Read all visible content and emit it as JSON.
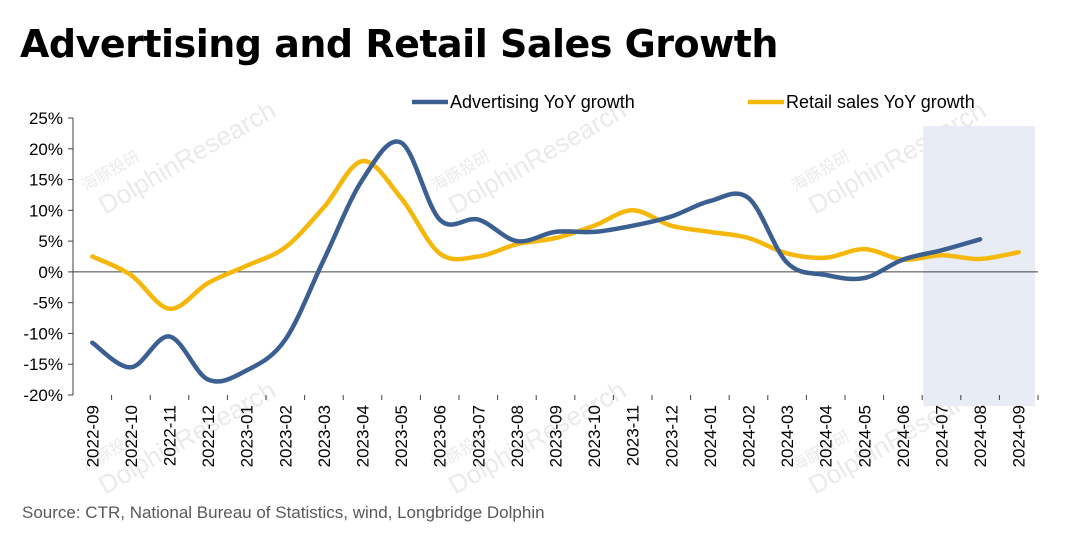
{
  "title": "Advertising and Retail Sales Growth",
  "source": "Source: CTR, National Bureau of Statistics, wind, Longbridge Dolphin",
  "watermark": {
    "brand": "DolphinResearch",
    "cn": "海豚投研"
  },
  "colors": {
    "advertising": "#3C5F92",
    "retail": "#F5B80A",
    "shade": "#E8ECF5",
    "axis": "#404040"
  },
  "chart_data": {
    "type": "line",
    "categories": [
      "2022-09",
      "2022-10",
      "2022-11",
      "2022-12",
      "2023-01",
      "2023-02",
      "2023-03",
      "2023-04",
      "2023-05",
      "2023-06",
      "2023-07",
      "2023-08",
      "2023-09",
      "2023-10",
      "2023-11",
      "2023-12",
      "2024-01",
      "2024-02",
      "2024-03",
      "2024-04",
      "2024-05",
      "2024-06",
      "2024-07",
      "2024-08",
      "2024-09"
    ],
    "series": [
      {
        "name": "Advertising YoY growth",
        "color": "#3C5F92",
        "values": [
          -11.5,
          -15.5,
          -10.5,
          -17.5,
          -16,
          -11,
          2,
          15,
          21,
          8.5,
          8.5,
          5,
          6.5,
          6.5,
          7.5,
          9,
          11.5,
          12,
          1.5,
          -0.5,
          -1,
          2,
          3.5,
          5.3,
          null
        ]
      },
      {
        "name": "Retail sales YoY growth",
        "color": "#F5B80A",
        "values": [
          2.5,
          -0.5,
          -6,
          -1.8,
          1,
          4,
          10.5,
          18,
          12,
          3,
          2.5,
          4.5,
          5.5,
          7.5,
          10,
          7.5,
          6.5,
          5.5,
          3,
          2.3,
          3.7,
          2,
          2.7,
          2.1,
          3.2
        ]
      }
    ],
    "ylim": [
      -20,
      25
    ],
    "yticks": [
      "25%",
      "20%",
      "15%",
      "10%",
      "5%",
      "0%",
      "-5%",
      "-10%",
      "-15%",
      "-20%"
    ],
    "shaded_range": [
      "2024-07",
      "2024-09"
    ],
    "legend": "top-right",
    "xlabel": "",
    "ylabel": ""
  }
}
